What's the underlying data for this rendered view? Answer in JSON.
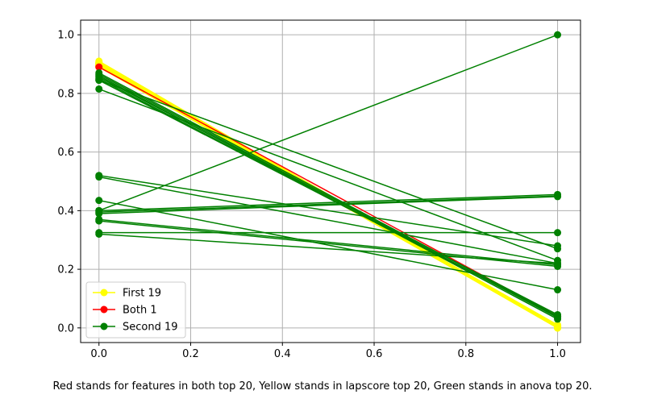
{
  "caption": "Red stands for features in both top 20, Yellow stands in lapscore top 20, Green stands in anova top 20.",
  "chart_data": {
    "type": "line",
    "title": "",
    "xlabel": "",
    "ylabel": "",
    "xlim": [
      -0.04,
      1.05
    ],
    "ylim": [
      -0.05,
      1.05
    ],
    "xticks": [
      "0.0",
      "0.2",
      "0.4",
      "0.6",
      "0.8",
      "1.0"
    ],
    "yticks": [
      "0.0",
      "0.2",
      "0.4",
      "0.6",
      "0.8",
      "1.0"
    ],
    "grid": true,
    "legend": "lower-left",
    "colors": {
      "first": "#ffff00",
      "both": "#ff0000",
      "second": "#008000"
    },
    "series": [
      {
        "name": "First 19",
        "color": "#ffff00",
        "lines": [
          [
            0.91,
            0.0
          ],
          [
            0.905,
            0.003
          ],
          [
            0.9,
            0.006
          ],
          [
            0.897,
            0.009
          ],
          [
            0.895,
            0.0
          ],
          [
            0.893,
            0.004
          ],
          [
            0.9,
            0.002
          ],
          [
            0.905,
            0.0
          ],
          [
            0.898,
            0.007
          ],
          [
            0.892,
            0.005
          ],
          [
            0.9,
            0.01
          ],
          [
            0.894,
            0.008
          ],
          [
            0.896,
            0.0
          ],
          [
            0.902,
            0.004
          ],
          [
            0.899,
            0.002
          ],
          [
            0.89,
            0.006
          ],
          [
            0.903,
            0.001
          ],
          [
            0.906,
            0.003
          ],
          [
            0.891,
            0.0
          ]
        ]
      },
      {
        "name": "Both 1",
        "color": "#ff0000",
        "lines": [
          [
            0.89,
            0.04
          ]
        ]
      },
      {
        "name": "Second 19",
        "color": "#008000",
        "lines": [
          [
            0.87,
            0.04
          ],
          [
            0.865,
            0.035
          ],
          [
            0.86,
            0.03
          ],
          [
            0.855,
            0.045
          ],
          [
            0.85,
            0.038
          ],
          [
            0.845,
            0.04
          ],
          [
            0.815,
            0.23
          ],
          [
            0.845,
            0.27
          ],
          [
            0.4,
            1.0
          ],
          [
            0.52,
            0.28
          ],
          [
            0.515,
            0.22
          ],
          [
            0.435,
            0.13
          ],
          [
            0.4,
            0.455
          ],
          [
            0.395,
            0.45
          ],
          [
            0.39,
            0.448
          ],
          [
            0.37,
            0.215
          ],
          [
            0.365,
            0.21
          ],
          [
            0.325,
            0.325
          ],
          [
            0.32,
            0.22
          ]
        ]
      }
    ]
  }
}
